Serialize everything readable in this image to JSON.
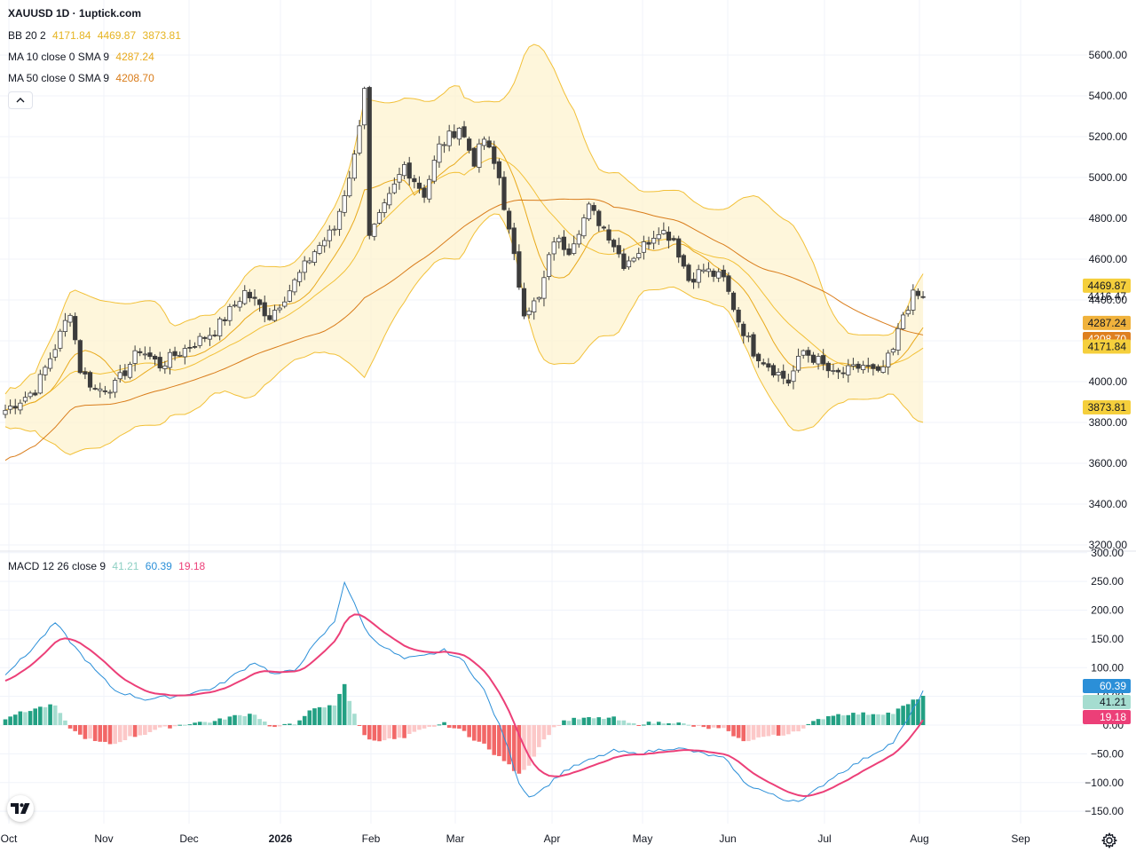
{
  "header": {
    "title": "XAUUSD 1D · 1uptick.com"
  },
  "legend": {
    "bb": {
      "name": "BB 20 2",
      "basis": "4171.84",
      "upper": "4469.87",
      "lower": "3873.81"
    },
    "ma10": {
      "name": "MA 10 close 0 SMA 9",
      "value": "4287.24"
    },
    "ma50": {
      "name": "MA 50 close 0 SMA 9",
      "value": "4208.70"
    },
    "macd": {
      "name": "MACD 12 26 close 9",
      "hist": "41.21",
      "macd": "60.39",
      "signal": "19.18"
    }
  },
  "colors": {
    "bb": "#f2c037",
    "ma10": "#e8a91b",
    "ma50": "#d97c1a",
    "macd_line": "#2b8fd8",
    "signal_line": "#ec3f78",
    "hist_pos_strong": "#22a083",
    "hist_pos_weak": "#a5ddd0",
    "hist_neg_strong": "#f26767",
    "hist_neg_weak": "#fcc8c8",
    "candle_up": "#ffffff",
    "candle_down": "#3c3c3c"
  },
  "price_labels": [
    {
      "text": "4469.87",
      "value": 4469.87,
      "bg": "#f5cf3c",
      "fg": "#131722"
    },
    {
      "text": "4416.47",
      "value": 4416.47,
      "bg": "",
      "fg": "#131722"
    },
    {
      "text": "4287.24",
      "value": 4287.24,
      "bg": "#f0b23c",
      "fg": "#131722"
    },
    {
      "text": "4208.70",
      "value": 4208.7,
      "bg": "#de7f1f",
      "fg": "#ffffff"
    },
    {
      "text": "4171.84",
      "value": 4171.84,
      "bg": "#f5cf3c",
      "fg": "#131722"
    },
    {
      "text": "3873.81",
      "value": 3873.81,
      "bg": "#f5cf3c",
      "fg": "#131722"
    }
  ],
  "macd_labels": [
    {
      "text": "60.39",
      "value": 60.39,
      "bg": "#2b8fd8",
      "fg": "#ffffff"
    },
    {
      "text": "41.21",
      "value": 41.21,
      "bg": "#a5ddd0",
      "fg": "#131722"
    },
    {
      "text": "19.18",
      "value": 19.18,
      "bg": "#ec3f78",
      "fg": "#ffffff"
    }
  ],
  "chart_data": [
    {
      "type": "candlestick",
      "title": "XAUUSD 1D",
      "y_ticks": [
        3200,
        3400,
        3600,
        3800,
        4000,
        4200,
        4400,
        4600,
        4800,
        5000,
        5200,
        5400,
        5600
      ],
      "ylim": [
        3180,
        5700
      ],
      "x_labels": [
        "Oct",
        "Nov",
        "Dec",
        "2026",
        "Feb",
        "Mar",
        "Apr",
        "May",
        "Jun",
        "Jul",
        "Aug",
        "Sep"
      ],
      "close_anchors": [
        [
          0,
          3860
        ],
        [
          6,
          3960
        ],
        [
          10,
          4170
        ],
        [
          13,
          4350
        ],
        [
          15,
          4060
        ],
        [
          18,
          3960
        ],
        [
          22,
          3980
        ],
        [
          27,
          4160
        ],
        [
          31,
          4080
        ],
        [
          34,
          4130
        ],
        [
          42,
          4250
        ],
        [
          48,
          4440
        ],
        [
          53,
          4320
        ],
        [
          57,
          4450
        ],
        [
          62,
          4640
        ],
        [
          66,
          4750
        ],
        [
          70,
          5100
        ],
        [
          72,
          5450
        ],
        [
          73,
          4700
        ],
        [
          77,
          4900
        ],
        [
          80,
          5060
        ],
        [
          84,
          4920
        ],
        [
          87,
          5150
        ],
        [
          91,
          5250
        ],
        [
          94,
          5080
        ],
        [
          96,
          5190
        ],
        [
          99,
          5000
        ],
        [
          101,
          4730
        ],
        [
          104,
          4350
        ],
        [
          107,
          4400
        ],
        [
          110,
          4700
        ],
        [
          113,
          4650
        ],
        [
          117,
          4850
        ],
        [
          121,
          4720
        ],
        [
          124,
          4580
        ],
        [
          127,
          4640
        ],
        [
          131,
          4750
        ],
        [
          134,
          4700
        ],
        [
          137,
          4500
        ],
        [
          140,
          4550
        ],
        [
          144,
          4500
        ],
        [
          147,
          4300
        ],
        [
          150,
          4150
        ],
        [
          154,
          4060
        ],
        [
          157,
          4000
        ],
        [
          160,
          4150
        ],
        [
          163,
          4100
        ],
        [
          166,
          4030
        ],
        [
          169,
          4050
        ],
        [
          172,
          4080
        ],
        [
          175,
          4030
        ],
        [
          178,
          4150
        ],
        [
          180,
          4330
        ],
        [
          182,
          4420
        ],
        [
          184,
          4416
        ]
      ],
      "macd_anchors": [
        [
          0,
          90
        ],
        [
          4,
          120
        ],
        [
          10,
          178
        ],
        [
          14,
          135
        ],
        [
          18,
          95
        ],
        [
          22,
          60
        ],
        [
          28,
          45
        ],
        [
          34,
          50
        ],
        [
          42,
          65
        ],
        [
          50,
          110
        ],
        [
          54,
          88
        ],
        [
          58,
          95
        ],
        [
          62,
          140
        ],
        [
          66,
          180
        ],
        [
          68,
          250
        ],
        [
          71,
          190
        ],
        [
          73,
          155
        ],
        [
          77,
          130
        ],
        [
          80,
          115
        ],
        [
          84,
          120
        ],
        [
          88,
          130
        ],
        [
          92,
          110
        ],
        [
          96,
          60
        ],
        [
          100,
          -20
        ],
        [
          103,
          -100
        ],
        [
          105,
          -125
        ],
        [
          108,
          -110
        ],
        [
          112,
          -80
        ],
        [
          116,
          -65
        ],
        [
          119,
          -55
        ],
        [
          122,
          -45
        ],
        [
          126,
          -50
        ],
        [
          130,
          -45
        ],
        [
          133,
          -40
        ],
        [
          136,
          -42
        ],
        [
          140,
          -50
        ],
        [
          144,
          -58
        ],
        [
          146,
          -75
        ],
        [
          148,
          -100
        ],
        [
          152,
          -115
        ],
        [
          156,
          -130
        ],
        [
          160,
          -130
        ],
        [
          163,
          -110
        ],
        [
          166,
          -90
        ],
        [
          170,
          -70
        ],
        [
          174,
          -50
        ],
        [
          178,
          -30
        ],
        [
          181,
          10
        ],
        [
          184,
          60
        ]
      ]
    },
    {
      "type": "bar",
      "title": "MACD 12 26 close 9",
      "y_ticks": [
        -150,
        -100,
        -50,
        0,
        50,
        100,
        150,
        200,
        250,
        300
      ],
      "ylim": [
        -175,
        300
      ]
    }
  ]
}
